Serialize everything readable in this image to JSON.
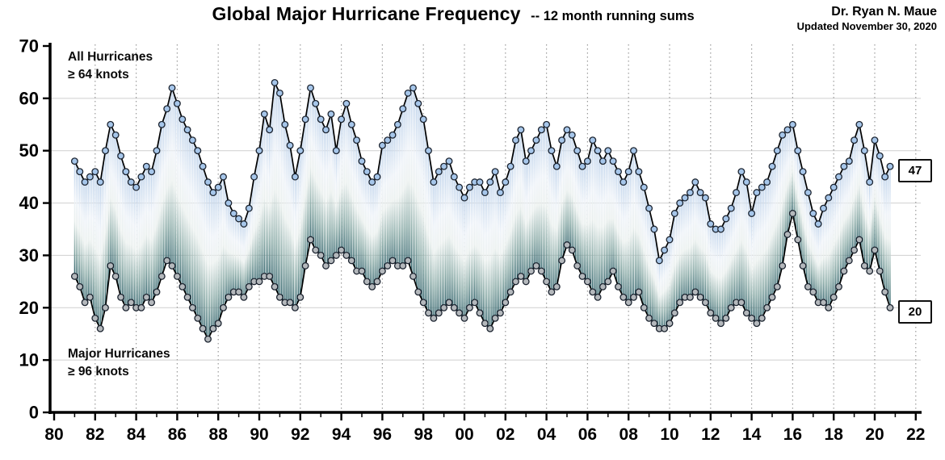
{
  "header": {
    "title": "Global Major Hurricane Frequency",
    "subtitle": "-- 12 month running sums",
    "attribution": "Dr. Ryan N. Maue",
    "updated": "Updated November 30, 2020"
  },
  "annotations": {
    "all_line1": "All Hurricanes",
    "all_line2": "≥ 64 knots",
    "major_line1": "Major Hurricanes",
    "major_line2": "≥ 96 knots",
    "end_all": "47",
    "end_major": "20"
  },
  "colors": {
    "all_marker_fill": "#a6c6ea",
    "major_marker_fill": "#b4b8bc",
    "marker_stroke": "#1c2430",
    "line": "#000000",
    "hatch_top": "#b9cfe9",
    "hatch_mid": "#edf2f8",
    "hatch_low": "#86a8a4",
    "hatch_bottom": "#2b5e67",
    "grid_v": "#9b9b9b",
    "grid_h": "#cfcfcf",
    "axis": "#000000"
  },
  "chart_data": {
    "type": "line",
    "title": "Global Major Hurricane Frequency -- 12 month running sums",
    "xlabel": "",
    "ylabel": "",
    "xlim": [
      1980,
      2022.5
    ],
    "ylim": [
      0,
      70
    ],
    "grid": "vertical dashed every 2 years, horizontal solid every 10",
    "legend_position": "in-plot text annotations",
    "x_start": 1981.0,
    "x_step": 0.25,
    "x_tick_years": [
      1980,
      1982,
      1984,
      1986,
      1988,
      1990,
      1992,
      1994,
      1996,
      1998,
      2000,
      2002,
      2004,
      2006,
      2008,
      2010,
      2012,
      2014,
      2016,
      2018,
      2020,
      2022
    ],
    "x_tick_labels": [
      "80",
      "82",
      "84",
      "86",
      "88",
      "90",
      "92",
      "94",
      "96",
      "98",
      "00",
      "02",
      "04",
      "06",
      "08",
      "10",
      "12",
      "14",
      "16",
      "18",
      "20",
      "22"
    ],
    "y_ticks": [
      0,
      10,
      20,
      30,
      40,
      50,
      60,
      70
    ],
    "y_tick_labels": [
      "0",
      "10",
      "20",
      "30",
      "40",
      "50",
      "60",
      "70"
    ],
    "series": [
      {
        "name": "All Hurricanes (≥ 64 knots)",
        "end_label": 47,
        "values": [
          48,
          46,
          44,
          45,
          46,
          44,
          50,
          55,
          53,
          49,
          46,
          44,
          43,
          45,
          47,
          46,
          50,
          55,
          58,
          62,
          59,
          56,
          54,
          52,
          50,
          47,
          44,
          42,
          43,
          45,
          40,
          38,
          37,
          36,
          39,
          45,
          50,
          57,
          54,
          63,
          61,
          55,
          51,
          45,
          50,
          56,
          62,
          59,
          56,
          54,
          57,
          50,
          56,
          59,
          55,
          52,
          48,
          46,
          44,
          45,
          51,
          52,
          53,
          55,
          58,
          61,
          62,
          59,
          56,
          50,
          44,
          46,
          47,
          48,
          45,
          43,
          41,
          43,
          44,
          44,
          42,
          44,
          46,
          42,
          44,
          47,
          52,
          54,
          48,
          50,
          52,
          54,
          55,
          50,
          47,
          52,
          54,
          53,
          50,
          47,
          48,
          52,
          50,
          48,
          50,
          48,
          46,
          44,
          46,
          50,
          46,
          43,
          39,
          35,
          29,
          31,
          33,
          38,
          40,
          41,
          42,
          44,
          42,
          41,
          36,
          35,
          35,
          37,
          39,
          42,
          46,
          44,
          38,
          42,
          43,
          44,
          47,
          50,
          53,
          54,
          55,
          50,
          46,
          42,
          38,
          36,
          39,
          41,
          43,
          45,
          47,
          48,
          52,
          55,
          50,
          44,
          52,
          49,
          45,
          47
        ]
      },
      {
        "name": "Major Hurricanes (≥ 96 knots)",
        "end_label": 20,
        "values": [
          26,
          24,
          21,
          22,
          18,
          16,
          20,
          28,
          26,
          22,
          20,
          21,
          20,
          20,
          22,
          21,
          23,
          26,
          29,
          28,
          26,
          24,
          22,
          20,
          18,
          16,
          14,
          16,
          17,
          20,
          22,
          23,
          23,
          22,
          24,
          25,
          25,
          26,
          26,
          24,
          22,
          21,
          21,
          20,
          22,
          28,
          33,
          31,
          30,
          28,
          29,
          30,
          31,
          30,
          29,
          27,
          27,
          25,
          24,
          25,
          27,
          28,
          29,
          28,
          28,
          29,
          26,
          23,
          21,
          19,
          18,
          19,
          20,
          21,
          20,
          19,
          18,
          20,
          21,
          19,
          17,
          16,
          18,
          19,
          21,
          23,
          25,
          26,
          25,
          27,
          28,
          27,
          25,
          23,
          24,
          29,
          32,
          31,
          28,
          26,
          25,
          23,
          22,
          24,
          25,
          27,
          24,
          22,
          21,
          22,
          23,
          20,
          18,
          17,
          16,
          16,
          17,
          19,
          21,
          22,
          22,
          23,
          22,
          21,
          19,
          18,
          17,
          18,
          20,
          21,
          21,
          19,
          18,
          17,
          18,
          20,
          22,
          24,
          28,
          34,
          38,
          33,
          28,
          24,
          23,
          21,
          21,
          20,
          22,
          24,
          27,
          29,
          31,
          33,
          28,
          27,
          31,
          27,
          23,
          20
        ]
      }
    ]
  }
}
